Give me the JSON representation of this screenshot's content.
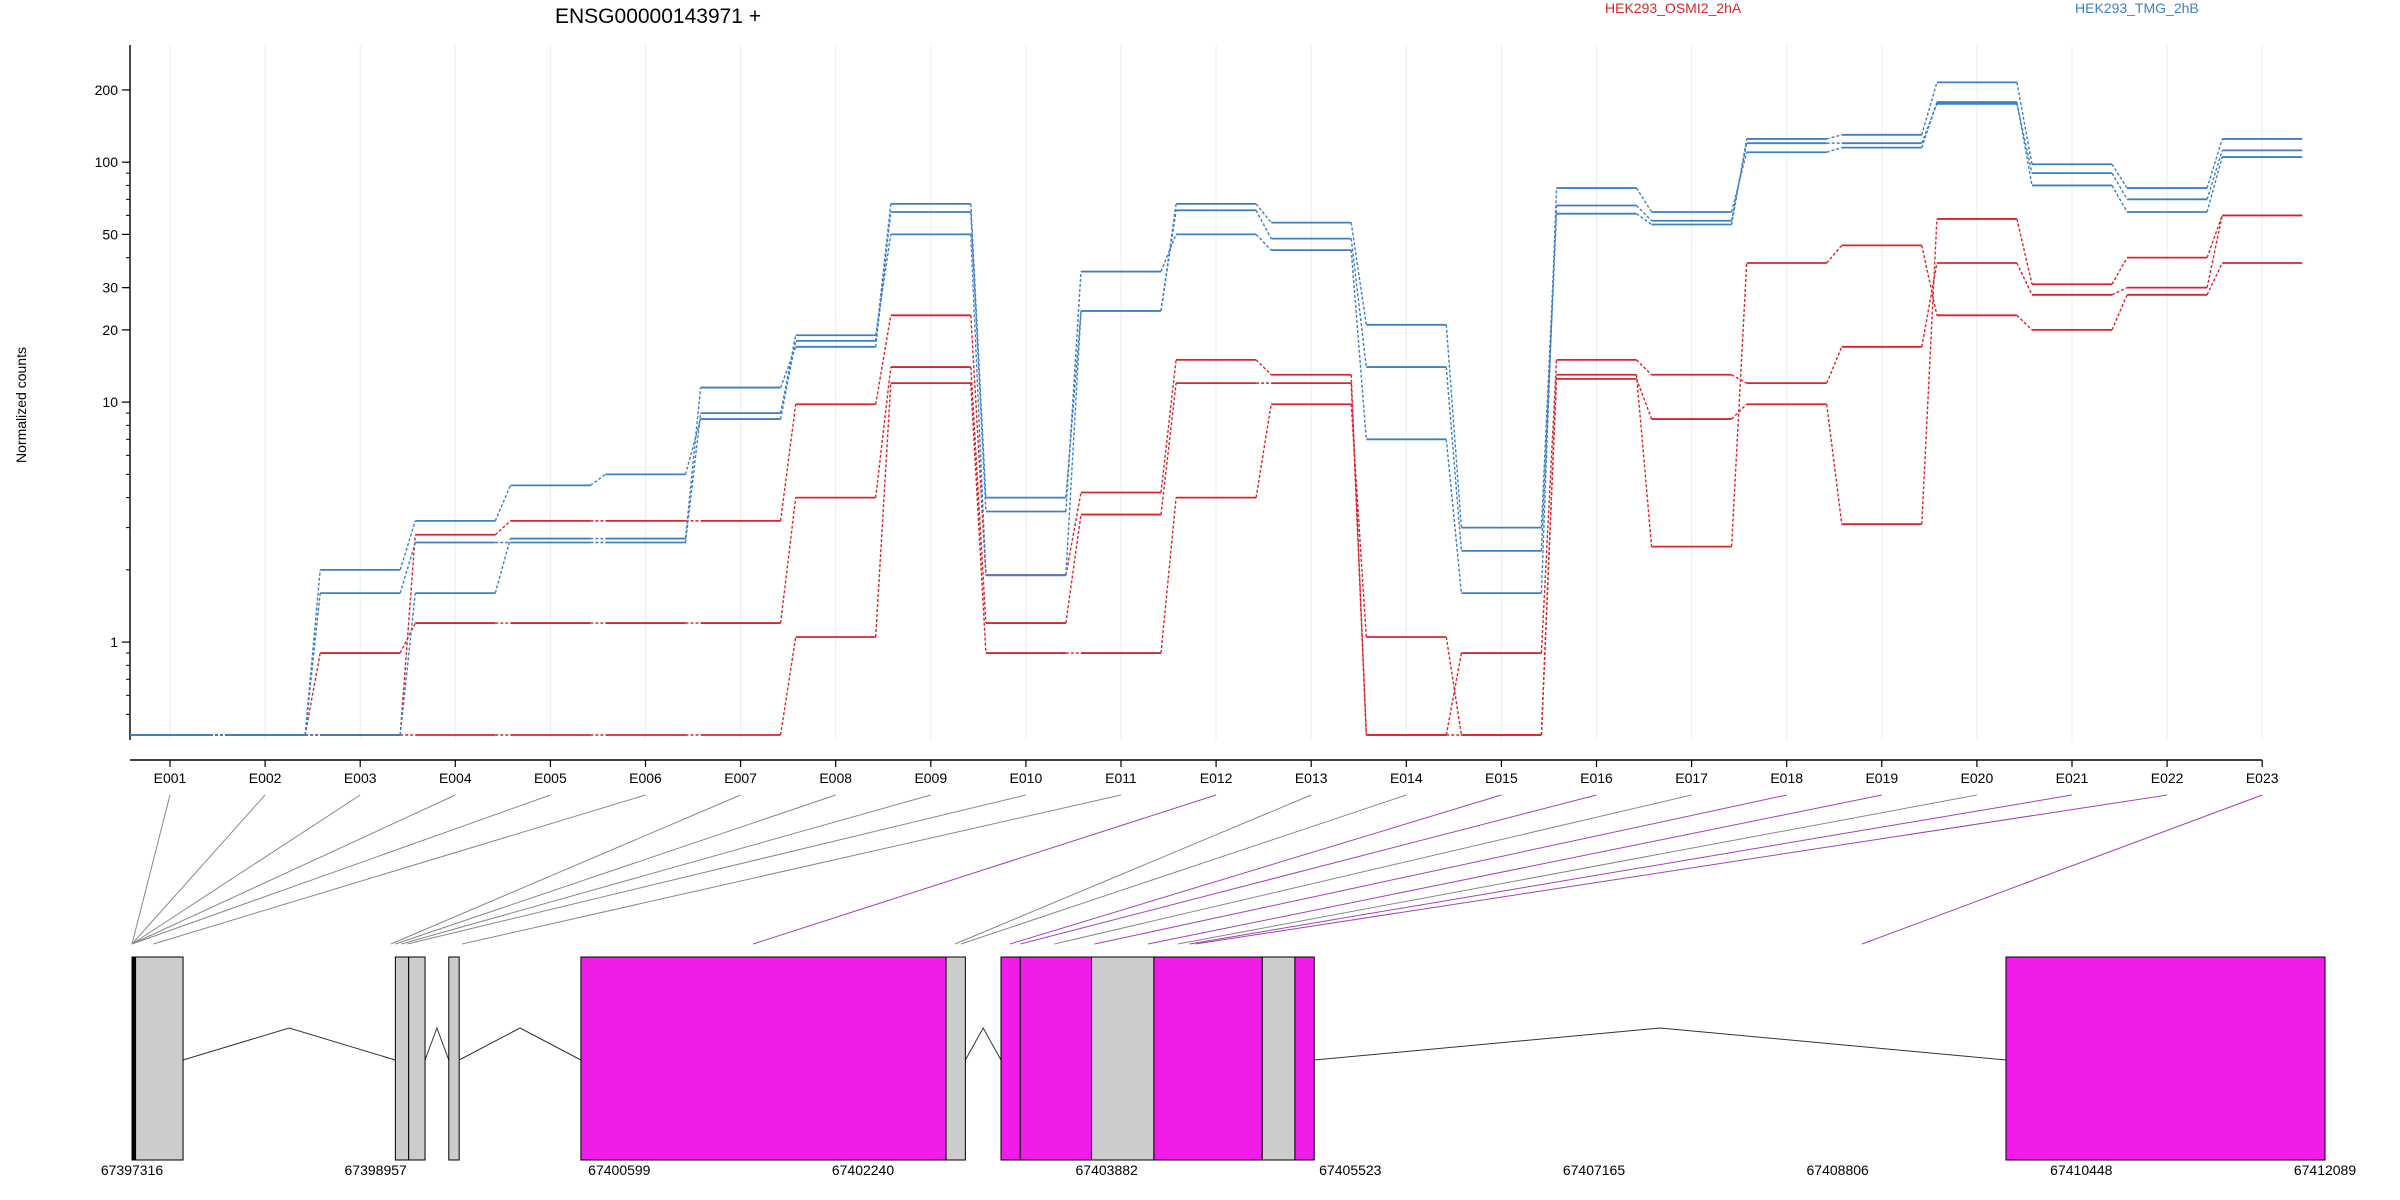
{
  "header": {
    "title": "ENSG00000143971 +",
    "legend": [
      {
        "label": "HEK293_OSMI2_2hA",
        "color": "#d7262b"
      },
      {
        "label": "HEK293_TMG_2hB",
        "color": "#3f7fc4"
      }
    ]
  },
  "chart_data": {
    "type": "line",
    "title": "ENSG00000143971 +",
    "xlabel": "",
    "ylabel": "Normalized counts",
    "yscale": "log",
    "ylim": [
      0.4,
      250
    ],
    "yticks": [
      1,
      10,
      20,
      30,
      50,
      100,
      200
    ],
    "grid": true,
    "legend_position": "top-right",
    "categories": [
      "E001",
      "E002",
      "E003",
      "E004",
      "E005",
      "E006",
      "E007",
      "E008",
      "E009",
      "E010",
      "E011",
      "E012",
      "E013",
      "E014",
      "E015",
      "E016",
      "E017",
      "E018",
      "E019",
      "E020",
      "E021",
      "E022",
      "E023"
    ],
    "series": [
      {
        "group": "HEK293_OSMI2_2hA",
        "color": "#d7262b",
        "values": [
          0.41,
          0.41,
          0.41,
          2.8,
          3.2,
          3.2,
          3.2,
          9.8,
          23,
          1.9,
          4.2,
          15,
          13,
          0.41,
          0.9,
          15,
          13,
          12,
          17,
          38,
          28,
          30,
          60
        ]
      },
      {
        "group": "HEK293_OSMI2_2hA",
        "color": "#d7262b",
        "values": [
          0.41,
          0.41,
          0.9,
          1.2,
          1.2,
          1.2,
          1.2,
          4.0,
          14,
          1.2,
          3.4,
          12,
          12,
          0.41,
          0.41,
          12.5,
          8.5,
          9.8,
          3.1,
          58,
          31,
          40,
          60
        ]
      },
      {
        "group": "HEK293_OSMI2_2hA",
        "color": "#d7262b",
        "values": [
          0.41,
          0.41,
          0.41,
          0.41,
          0.41,
          0.41,
          0.41,
          1.05,
          12,
          0.9,
          0.9,
          4,
          9.8,
          1.05,
          0.41,
          13,
          2.5,
          38,
          45,
          23,
          20,
          28,
          38
        ]
      },
      {
        "group": "HEK293_TMG_2hB",
        "color": "#3f7fc4",
        "values": [
          0.41,
          0.41,
          2.0,
          3.2,
          4.5,
          5.0,
          8.5,
          18,
          67,
          4.0,
          24,
          63,
          48,
          14,
          2.4,
          61,
          55,
          125,
          130,
          215,
          98,
          78,
          125
        ]
      },
      {
        "group": "HEK293_TMG_2hB",
        "color": "#3f7fc4",
        "values": [
          0.41,
          0.41,
          1.6,
          2.6,
          2.6,
          2.6,
          9.0,
          19,
          50,
          1.9,
          24,
          67,
          56,
          21,
          3.0,
          66,
          57,
          120,
          120,
          175,
          90,
          70,
          112
        ]
      },
      {
        "group": "HEK293_TMG_2hB",
        "color": "#3f7fc4",
        "values": [
          0.41,
          0.41,
          0.41,
          1.6,
          2.7,
          2.7,
          11.5,
          17,
          62,
          3.5,
          35,
          50,
          43,
          7,
          1.6,
          78,
          62,
          110,
          115,
          178,
          80,
          62,
          105
        ]
      }
    ],
    "gene_model": {
      "coordinate_labels": [
        "67397316",
        "67398957",
        "67400599",
        "67402240",
        "67403882",
        "67405523",
        "67407165",
        "67408806",
        "67410448",
        "67412089"
      ],
      "coord_range": [
        67397316,
        67412089
      ],
      "exon_bins": [
        {
          "start": 67397316,
          "end": 67397340,
          "fill": "#000000"
        },
        {
          "start": 67397340,
          "end": 67397660,
          "fill": "#cccccc"
        },
        {
          "start": 67399090,
          "end": 67399180,
          "fill": "#cccccc"
        },
        {
          "start": 67399180,
          "end": 67399290,
          "fill": "#cccccc"
        },
        {
          "start": 67399450,
          "end": 67399520,
          "fill": "#cccccc"
        },
        {
          "start": 67400340,
          "end": 67402800,
          "fill": "#f01de9"
        },
        {
          "start": 67402800,
          "end": 67402930,
          "fill": "#cccccc"
        },
        {
          "start": 67403170,
          "end": 67403300,
          "fill": "#f01de9"
        },
        {
          "start": 67403300,
          "end": 67403780,
          "fill": "#f01de9"
        },
        {
          "start": 67403780,
          "end": 67404200,
          "fill": "#cccccc"
        },
        {
          "start": 67404200,
          "end": 67404930,
          "fill": "#f01de9"
        },
        {
          "start": 67404930,
          "end": 67405150,
          "fill": "#cccccc"
        },
        {
          "start": 67405150,
          "end": 67405280,
          "fill": "#f01de9"
        },
        {
          "start": 67409940,
          "end": 67412089,
          "fill": "#f01de9"
        }
      ],
      "introns": [
        [
          67397660,
          67399090
        ],
        [
          67399290,
          67399450
        ],
        [
          67399520,
          67400340
        ],
        [
          67402930,
          67403170
        ],
        [
          67405280,
          67409940
        ]
      ],
      "feature_link_coords": [
        67397316,
        67397316,
        67397316,
        67397316,
        67397316,
        67397460,
        67399060,
        67399090,
        67399130,
        67399170,
        67399540,
        67401500,
        67402860,
        67402900,
        67403230,
        67403300,
        67403530,
        67403800,
        67404160,
        67404360,
        67404440,
        67404480,
        67408970
      ],
      "feature_link_colors": [
        "#888888",
        "#888888",
        "#888888",
        "#888888",
        "#888888",
        "#888888",
        "#888888",
        "#888888",
        "#888888",
        "#888888",
        "#888888",
        "#a342b6",
        "#888888",
        "#888888",
        "#a342b6",
        "#a342b6",
        "#888888",
        "#a342b6",
        "#a342b6",
        "#888888",
        "#a342b6",
        "#a342b6",
        "#a342b6"
      ]
    }
  }
}
